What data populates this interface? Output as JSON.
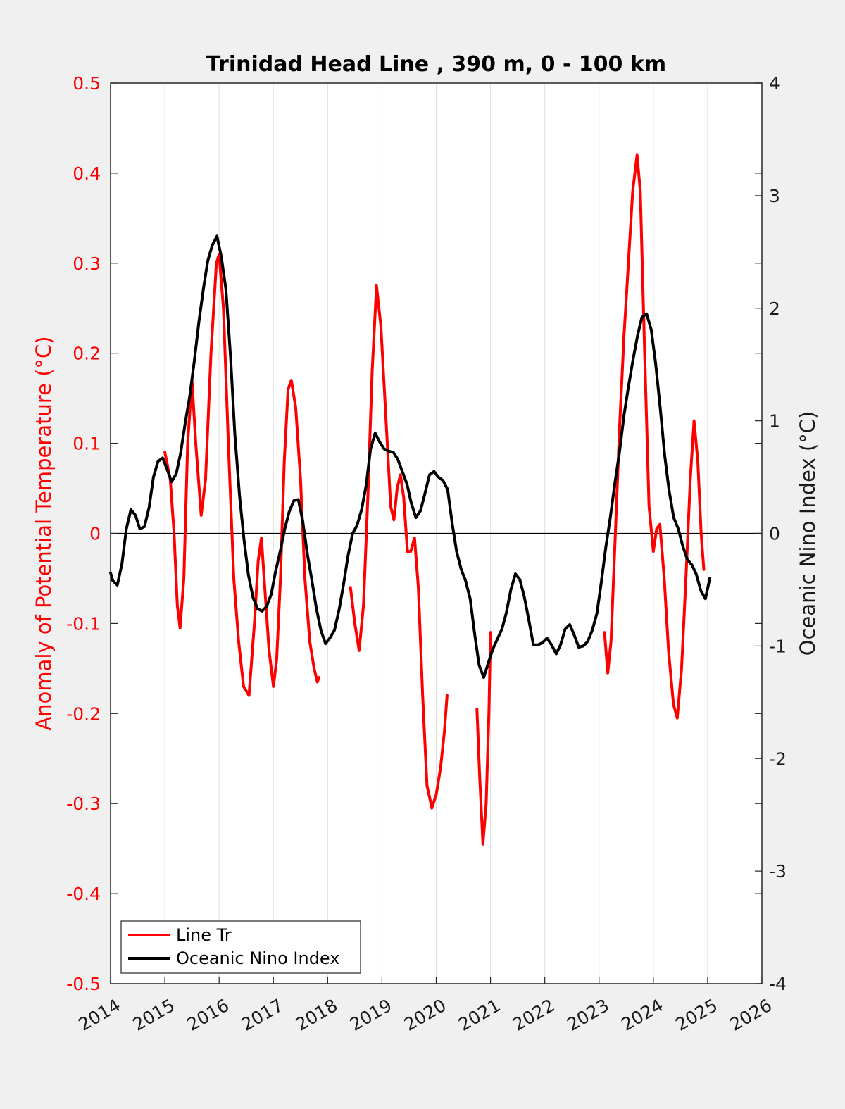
{
  "chart_data": {
    "type": "line",
    "title": "Trinidad Head Line , 390 m, 0 - 100 km",
    "ylabel_left": "Anomaly of Potential Temperature (°C)",
    "ylabel_right": "Oceanic Nino Index (°C)",
    "xlim": [
      2014,
      2026
    ],
    "ylim_left": [
      -0.5,
      0.5
    ],
    "ylim_right": [
      -4,
      4
    ],
    "x_ticks": [
      "2014",
      "2015",
      "2016",
      "2017",
      "2018",
      "2019",
      "2020",
      "2021",
      "2022",
      "2023",
      "2024",
      "2025",
      "2026"
    ],
    "y_ticks_left": [
      "-0.5",
      "-0.4",
      "-0.3",
      "-0.2",
      "-0.1",
      "0",
      "0.1",
      "0.2",
      "0.3",
      "0.4",
      "0.5"
    ],
    "y_ticks_right": [
      "-4",
      "-3",
      "-2",
      "-1",
      "0",
      "1",
      "2",
      "3",
      "4"
    ],
    "grid": "vertical",
    "zero_line": true,
    "legend_position": "bottom-left",
    "colors": {
      "line_tr": "#ff0000",
      "oni": "#000000",
      "left_axis": "#ff0000",
      "right_axis": "#1a1a1a",
      "background": "#f0f0f0",
      "plot_area": "#ffffff",
      "grid": "#e0e0e0"
    },
    "series": [
      {
        "name": "Line Tr",
        "axis": "left",
        "segments": [
          [
            [
              2015.0,
              0.09
            ],
            [
              2015.1,
              0.06
            ],
            [
              2015.17,
              0.0
            ],
            [
              2015.23,
              -0.08
            ],
            [
              2015.28,
              -0.105
            ],
            [
              2015.35,
              -0.05
            ],
            [
              2015.42,
              0.1
            ],
            [
              2015.5,
              0.17
            ],
            [
              2015.57,
              0.1
            ],
            [
              2015.67,
              0.02
            ],
            [
              2015.75,
              0.06
            ],
            [
              2015.85,
              0.2
            ],
            [
              2015.95,
              0.3
            ],
            [
              2016.0,
              0.31
            ],
            [
              2016.08,
              0.25
            ],
            [
              2016.17,
              0.1
            ],
            [
              2016.27,
              -0.05
            ],
            [
              2016.36,
              -0.12
            ],
            [
              2016.45,
              -0.17
            ],
            [
              2016.55,
              -0.18
            ],
            [
              2016.65,
              -0.1
            ],
            [
              2016.72,
              -0.03
            ],
            [
              2016.78,
              -0.005
            ],
            [
              2016.83,
              -0.05
            ],
            [
              2016.92,
              -0.13
            ],
            [
              2017.0,
              -0.17
            ],
            [
              2017.06,
              -0.14
            ],
            [
              2017.13,
              -0.05
            ],
            [
              2017.2,
              0.08
            ],
            [
              2017.27,
              0.16
            ],
            [
              2017.33,
              0.17
            ],
            [
              2017.41,
              0.14
            ],
            [
              2017.5,
              0.06
            ],
            [
              2017.58,
              -0.05
            ],
            [
              2017.67,
              -0.12
            ],
            [
              2017.75,
              -0.15
            ],
            [
              2017.81,
              -0.165
            ],
            [
              2017.84,
              -0.16
            ]
          ],
          [
            [
              2018.42,
              -0.06
            ],
            [
              2018.5,
              -0.1
            ],
            [
              2018.58,
              -0.13
            ],
            [
              2018.66,
              -0.08
            ],
            [
              2018.74,
              0.04
            ],
            [
              2018.82,
              0.18
            ],
            [
              2018.9,
              0.275
            ],
            [
              2018.98,
              0.23
            ],
            [
              2019.08,
              0.12
            ],
            [
              2019.16,
              0.03
            ],
            [
              2019.22,
              0.015
            ],
            [
              2019.28,
              0.05
            ],
            [
              2019.34,
              0.065
            ],
            [
              2019.4,
              0.04
            ],
            [
              2019.47,
              -0.02
            ],
            [
              2019.53,
              -0.02
            ],
            [
              2019.6,
              -0.005
            ],
            [
              2019.67,
              -0.06
            ],
            [
              2019.75,
              -0.18
            ],
            [
              2019.83,
              -0.28
            ],
            [
              2019.92,
              -0.305
            ],
            [
              2020.0,
              -0.29
            ],
            [
              2020.08,
              -0.26
            ],
            [
              2020.15,
              -0.22
            ],
            [
              2020.2,
              -0.18
            ]
          ],
          [
            [
              2020.75,
              -0.195
            ],
            [
              2020.8,
              -0.27
            ],
            [
              2020.86,
              -0.345
            ],
            [
              2020.92,
              -0.3
            ],
            [
              2020.97,
              -0.2
            ],
            [
              2021.0,
              -0.11
            ]
          ],
          [
            [
              2023.1,
              -0.11
            ],
            [
              2023.16,
              -0.155
            ],
            [
              2023.22,
              -0.12
            ],
            [
              2023.3,
              0.0
            ],
            [
              2023.38,
              0.12
            ],
            [
              2023.46,
              0.22
            ],
            [
              2023.54,
              0.3
            ],
            [
              2023.62,
              0.38
            ],
            [
              2023.7,
              0.42
            ],
            [
              2023.76,
              0.38
            ],
            [
              2023.84,
              0.2
            ],
            [
              2023.92,
              0.03
            ],
            [
              2024.0,
              -0.02
            ],
            [
              2024.06,
              0.005
            ],
            [
              2024.12,
              0.01
            ],
            [
              2024.2,
              -0.05
            ],
            [
              2024.28,
              -0.13
            ],
            [
              2024.37,
              -0.19
            ],
            [
              2024.44,
              -0.205
            ],
            [
              2024.52,
              -0.15
            ],
            [
              2024.6,
              -0.05
            ],
            [
              2024.68,
              0.06
            ],
            [
              2024.75,
              0.125
            ],
            [
              2024.82,
              0.08
            ],
            [
              2024.88,
              0.0
            ],
            [
              2024.93,
              -0.04
            ]
          ]
        ]
      },
      {
        "name": "Oceanic Nino Index",
        "axis": "right",
        "segments": [
          [
            [
              2014.0,
              -0.35
            ],
            [
              2014.04,
              -0.42
            ],
            [
              2014.125,
              -0.46
            ],
            [
              2014.21,
              -0.27
            ],
            [
              2014.29,
              0.04
            ],
            [
              2014.375,
              0.21
            ],
            [
              2014.46,
              0.16
            ],
            [
              2014.54,
              0.04
            ],
            [
              2014.625,
              0.06
            ],
            [
              2014.71,
              0.23
            ],
            [
              2014.79,
              0.5
            ],
            [
              2014.875,
              0.64
            ],
            [
              2014.96,
              0.67
            ],
            [
              2015.04,
              0.57
            ],
            [
              2015.125,
              0.46
            ],
            [
              2015.21,
              0.53
            ],
            [
              2015.29,
              0.71
            ],
            [
              2015.375,
              0.98
            ],
            [
              2015.46,
              1.22
            ],
            [
              2015.54,
              1.52
            ],
            [
              2015.625,
              1.87
            ],
            [
              2015.71,
              2.17
            ],
            [
              2015.79,
              2.42
            ],
            [
              2015.875,
              2.56
            ],
            [
              2015.96,
              2.64
            ],
            [
              2016.04,
              2.46
            ],
            [
              2016.125,
              2.17
            ],
            [
              2016.21,
              1.57
            ],
            [
              2016.29,
              0.88
            ],
            [
              2016.375,
              0.34
            ],
            [
              2016.46,
              -0.06
            ],
            [
              2016.54,
              -0.37
            ],
            [
              2016.625,
              -0.57
            ],
            [
              2016.71,
              -0.67
            ],
            [
              2016.79,
              -0.69
            ],
            [
              2016.875,
              -0.65
            ],
            [
              2016.96,
              -0.54
            ],
            [
              2017.04,
              -0.34
            ],
            [
              2017.125,
              -0.16
            ],
            [
              2017.21,
              0.04
            ],
            [
              2017.29,
              0.19
            ],
            [
              2017.375,
              0.29
            ],
            [
              2017.46,
              0.3
            ],
            [
              2017.54,
              0.11
            ],
            [
              2017.625,
              -0.18
            ],
            [
              2017.71,
              -0.42
            ],
            [
              2017.79,
              -0.66
            ],
            [
              2017.875,
              -0.86
            ],
            [
              2017.96,
              -0.98
            ],
            [
              2018.04,
              -0.93
            ],
            [
              2018.125,
              -0.86
            ],
            [
              2018.21,
              -0.68
            ],
            [
              2018.29,
              -0.46
            ],
            [
              2018.375,
              -0.2
            ],
            [
              2018.46,
              0.0
            ],
            [
              2018.54,
              0.07
            ],
            [
              2018.625,
              0.21
            ],
            [
              2018.71,
              0.43
            ],
            [
              2018.79,
              0.75
            ],
            [
              2018.875,
              0.89
            ],
            [
              2018.96,
              0.81
            ],
            [
              2019.04,
              0.75
            ],
            [
              2019.125,
              0.73
            ],
            [
              2019.21,
              0.72
            ],
            [
              2019.29,
              0.66
            ],
            [
              2019.375,
              0.55
            ],
            [
              2019.46,
              0.44
            ],
            [
              2019.54,
              0.27
            ],
            [
              2019.625,
              0.14
            ],
            [
              2019.71,
              0.2
            ],
            [
              2019.79,
              0.35
            ],
            [
              2019.875,
              0.52
            ],
            [
              2019.96,
              0.55
            ],
            [
              2020.04,
              0.5
            ],
            [
              2020.125,
              0.47
            ],
            [
              2020.21,
              0.39
            ],
            [
              2020.29,
              0.1
            ],
            [
              2020.375,
              -0.16
            ],
            [
              2020.46,
              -0.32
            ],
            [
              2020.54,
              -0.42
            ],
            [
              2020.625,
              -0.58
            ],
            [
              2020.71,
              -0.9
            ],
            [
              2020.79,
              -1.17
            ],
            [
              2020.875,
              -1.28
            ],
            [
              2020.96,
              -1.15
            ],
            [
              2021.04,
              -1.03
            ],
            [
              2021.125,
              -0.94
            ],
            [
              2021.21,
              -0.85
            ],
            [
              2021.29,
              -0.71
            ],
            [
              2021.375,
              -0.5
            ],
            [
              2021.46,
              -0.36
            ],
            [
              2021.54,
              -0.41
            ],
            [
              2021.625,
              -0.57
            ],
            [
              2021.71,
              -0.78
            ],
            [
              2021.79,
              -0.99
            ],
            [
              2021.875,
              -0.99
            ],
            [
              2021.96,
              -0.97
            ],
            [
              2022.04,
              -0.93
            ],
            [
              2022.125,
              -0.99
            ],
            [
              2022.21,
              -1.07
            ],
            [
              2022.29,
              -0.99
            ],
            [
              2022.375,
              -0.85
            ],
            [
              2022.46,
              -0.81
            ],
            [
              2022.54,
              -0.9
            ],
            [
              2022.625,
              -1.01
            ],
            [
              2022.71,
              -1.0
            ],
            [
              2022.79,
              -0.96
            ],
            [
              2022.875,
              -0.86
            ],
            [
              2022.96,
              -0.71
            ],
            [
              2023.04,
              -0.44
            ],
            [
              2023.125,
              -0.12
            ],
            [
              2023.21,
              0.15
            ],
            [
              2023.29,
              0.44
            ],
            [
              2023.375,
              0.72
            ],
            [
              2023.46,
              1.05
            ],
            [
              2023.54,
              1.3
            ],
            [
              2023.625,
              1.54
            ],
            [
              2023.71,
              1.76
            ],
            [
              2023.79,
              1.92
            ],
            [
              2023.875,
              1.95
            ],
            [
              2023.96,
              1.81
            ],
            [
              2024.04,
              1.52
            ],
            [
              2024.125,
              1.12
            ],
            [
              2024.21,
              0.69
            ],
            [
              2024.29,
              0.38
            ],
            [
              2024.375,
              0.14
            ],
            [
              2024.46,
              0.04
            ],
            [
              2024.54,
              -0.11
            ],
            [
              2024.625,
              -0.23
            ],
            [
              2024.71,
              -0.28
            ],
            [
              2024.79,
              -0.36
            ],
            [
              2024.875,
              -0.51
            ],
            [
              2024.96,
              -0.58
            ],
            [
              2025.04,
              -0.4
            ]
          ]
        ]
      }
    ]
  }
}
